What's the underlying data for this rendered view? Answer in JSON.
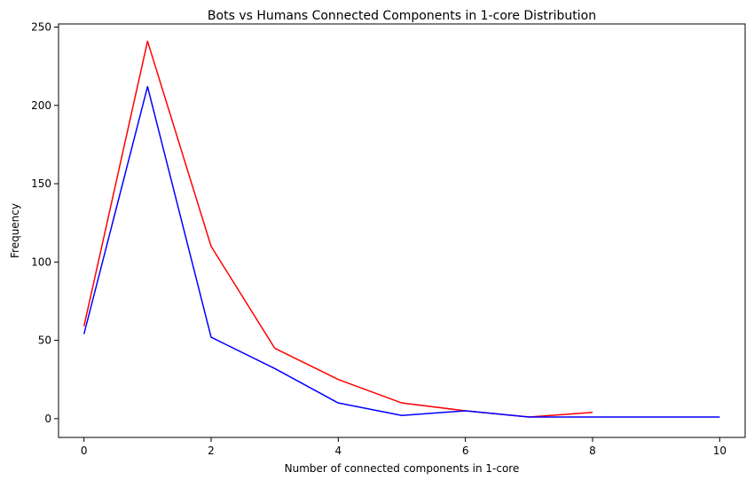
{
  "chart_data": {
    "type": "line",
    "title": "Bots vs Humans Connected Components in 1-core Distribution",
    "xlabel": "Number of connected components in 1-core",
    "ylabel": "Frequency",
    "xlim": [
      -0.4,
      10.4
    ],
    "ylim": [
      -12,
      252
    ],
    "xticks": [
      0,
      2,
      4,
      6,
      8,
      10
    ],
    "yticks": [
      0,
      50,
      100,
      150,
      200,
      250
    ],
    "grid": false,
    "legend": "none",
    "series": [
      {
        "color": "#ff0000",
        "x": [
          0,
          1,
          2,
          3,
          4,
          5,
          6,
          7,
          8
        ],
        "y": [
          59,
          241,
          110,
          45,
          25,
          10,
          5,
          1,
          4
        ]
      },
      {
        "color": "#0000ff",
        "x": [
          0,
          1,
          2,
          3,
          4,
          5,
          6,
          7,
          8,
          9,
          10
        ],
        "y": [
          54,
          212,
          52,
          32,
          10,
          2,
          5,
          1,
          1,
          1,
          1
        ]
      }
    ]
  }
}
